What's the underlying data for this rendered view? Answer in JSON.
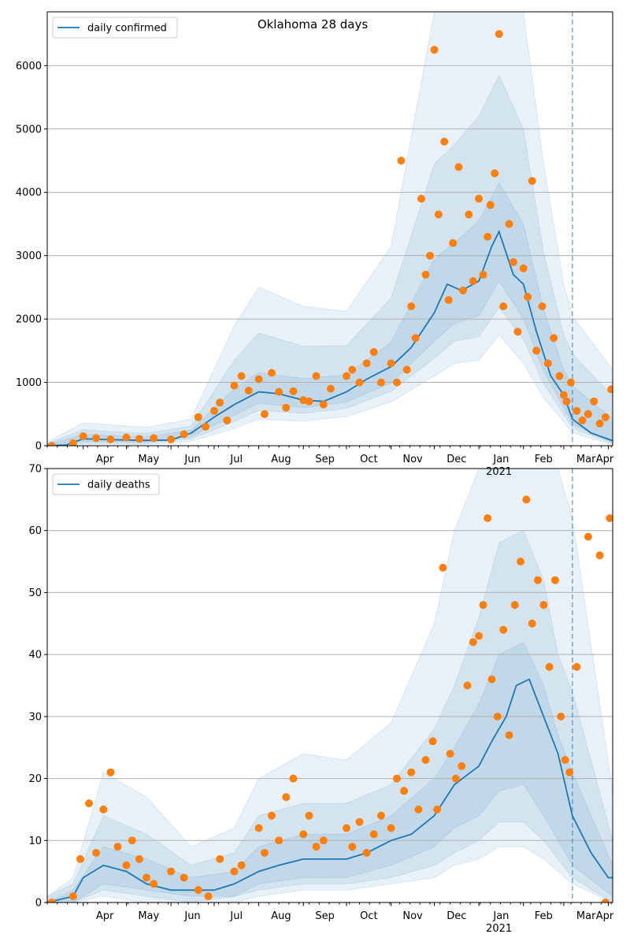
{
  "chart_data": [
    {
      "type": "line",
      "title": "Oklahoma 28 days",
      "xlabel": "",
      "ylabel": "",
      "ylim": [
        0,
        6850
      ],
      "yticks": [
        0,
        1000,
        2000,
        3000,
        4000,
        5000,
        6000
      ],
      "grid": "horizontal",
      "legend": {
        "position": "top-left",
        "entries": [
          "daily confirmed"
        ]
      },
      "xtick_labels": [
        "Apr",
        "May",
        "Jun",
        "Jul",
        "Aug",
        "Sep",
        "Oct",
        "Nov",
        "Dec",
        "Jan",
        "Feb",
        "Mar",
        "Apr"
      ],
      "year_label": "2021",
      "forecast_start": "2021-03-07",
      "series": [
        {
          "name": "daily confirmed",
          "kind": "line",
          "color": "#1f77b4",
          "x": [
            "2020-03-07",
            "2020-03-20",
            "2020-04-01",
            "2020-04-15",
            "2020-05-01",
            "2020-05-15",
            "2020-06-01",
            "2020-06-15",
            "2020-07-01",
            "2020-07-15",
            "2020-08-01",
            "2020-08-15",
            "2020-09-01",
            "2020-09-15",
            "2020-10-01",
            "2020-10-15",
            "2020-11-01",
            "2020-11-15",
            "2020-12-01",
            "2020-12-10",
            "2020-12-20",
            "2021-01-01",
            "2021-01-10",
            "2021-01-15",
            "2021-01-25",
            "2021-02-01",
            "2021-02-10",
            "2021-02-20",
            "2021-03-01",
            "2021-03-07",
            "2021-03-20",
            "2021-04-04"
          ],
          "y": [
            0,
            10,
            110,
            100,
            90,
            85,
            90,
            200,
            450,
            650,
            850,
            820,
            720,
            700,
            850,
            1050,
            1250,
            1550,
            2100,
            2550,
            2450,
            2600,
            3150,
            3380,
            2700,
            2550,
            1800,
            1100,
            800,
            420,
            200,
            80
          ]
        },
        {
          "name": "observed",
          "kind": "scatter",
          "color": "#ff7f0e",
          "x": [
            "2020-03-10",
            "2020-03-25",
            "2020-04-01",
            "2020-04-10",
            "2020-04-20",
            "2020-05-01",
            "2020-05-10",
            "2020-05-20",
            "2020-06-01",
            "2020-06-10",
            "2020-06-20",
            "2020-06-25",
            "2020-07-01",
            "2020-07-05",
            "2020-07-10",
            "2020-07-15",
            "2020-07-20",
            "2020-07-25",
            "2020-08-01",
            "2020-08-05",
            "2020-08-10",
            "2020-08-15",
            "2020-08-20",
            "2020-08-25",
            "2020-09-01",
            "2020-09-05",
            "2020-09-10",
            "2020-09-15",
            "2020-09-20",
            "2020-10-01",
            "2020-10-05",
            "2020-10-10",
            "2020-10-15",
            "2020-10-20",
            "2020-10-25",
            "2020-11-01",
            "2020-11-05",
            "2020-11-08",
            "2020-11-12",
            "2020-11-15",
            "2020-11-18",
            "2020-11-22",
            "2020-11-25",
            "2020-11-28",
            "2020-12-01",
            "2020-12-04",
            "2020-12-08",
            "2020-12-11",
            "2020-12-14",
            "2020-12-18",
            "2020-12-21",
            "2020-12-25",
            "2020-12-28",
            "2021-01-01",
            "2021-01-04",
            "2021-01-07",
            "2021-01-09",
            "2021-01-12",
            "2021-01-15",
            "2021-01-18",
            "2021-01-22",
            "2021-01-25",
            "2021-01-28",
            "2021-02-01",
            "2021-02-04",
            "2021-02-07",
            "2021-02-10",
            "2021-02-14",
            "2021-02-18",
            "2021-02-22",
            "2021-02-26",
            "2021-03-01",
            "2021-03-03",
            "2021-03-06",
            "2021-03-10",
            "2021-03-14",
            "2021-03-18",
            "2021-03-22",
            "2021-03-26",
            "2021-03-30",
            "2021-04-03"
          ],
          "y": [
            0,
            40,
            150,
            120,
            100,
            130,
            110,
            120,
            100,
            180,
            450,
            300,
            550,
            680,
            400,
            950,
            1100,
            870,
            1050,
            500,
            1150,
            850,
            600,
            860,
            720,
            700,
            1100,
            650,
            900,
            1100,
            1200,
            1000,
            1300,
            1480,
            1000,
            1300,
            1000,
            4500,
            1200,
            2200,
            1700,
            3900,
            2700,
            3000,
            6250,
            3650,
            4800,
            2300,
            3200,
            4400,
            2450,
            3650,
            2600,
            3900,
            2700,
            3300,
            3800,
            4300,
            6500,
            2200,
            3500,
            2900,
            1800,
            2800,
            2350,
            4180,
            1500,
            2200,
            1300,
            1700,
            1100,
            800,
            700,
            1000,
            550,
            400,
            500,
            700,
            350,
            450,
            890
          ]
        }
      ],
      "bands": [
        {
          "x": [
            "2020-03-07",
            "2020-04-01",
            "2020-05-15",
            "2020-06-15",
            "2020-07-15",
            "2020-08-01",
            "2020-09-01",
            "2020-10-01",
            "2020-11-01",
            "2020-12-01",
            "2020-12-15",
            "2021-01-01",
            "2021-01-15",
            "2021-02-01",
            "2021-02-15",
            "2021-03-01",
            "2021-03-07",
            "2021-04-04"
          ],
          "low": [
            0,
            20,
            20,
            70,
            270,
            420,
            390,
            460,
            690,
            1100,
            1300,
            1350,
            1750,
            1300,
            750,
            380,
            200,
            20
          ],
          "high": [
            60,
            360,
            290,
            420,
            1900,
            2500,
            2200,
            2120,
            3150,
            6850,
            6850,
            6850,
            6850,
            6850,
            4450,
            2550,
            2050,
            1200
          ]
        },
        {
          "x": [
            "2020-03-07",
            "2020-04-01",
            "2020-05-15",
            "2020-06-15",
            "2020-07-15",
            "2020-08-01",
            "2020-09-01",
            "2020-10-01",
            "2020-11-01",
            "2020-12-01",
            "2020-12-15",
            "2021-01-01",
            "2021-01-15",
            "2021-02-01",
            "2021-02-15",
            "2021-03-01",
            "2021-03-07",
            "2021-04-04"
          ],
          "low": [
            0,
            45,
            40,
            110,
            380,
            560,
            510,
            590,
            860,
            1380,
            1650,
            1720,
            2180,
            1680,
            980,
            500,
            280,
            35
          ],
          "high": [
            35,
            250,
            195,
            310,
            1350,
            1780,
            1570,
            1580,
            2330,
            4450,
            4750,
            5200,
            5850,
            5000,
            3050,
            1750,
            1450,
            780
          ]
        },
        {
          "x": [
            "2020-03-07",
            "2020-04-01",
            "2020-05-15",
            "2020-06-15",
            "2020-07-15",
            "2020-08-01",
            "2020-09-01",
            "2020-10-01",
            "2020-11-01",
            "2020-12-01",
            "2020-12-15",
            "2021-01-01",
            "2021-01-15",
            "2021-02-01",
            "2021-02-15",
            "2021-03-01",
            "2021-03-07",
            "2021-04-04"
          ],
          "low": [
            0,
            70,
            60,
            145,
            480,
            670,
            600,
            690,
            990,
            1650,
            1930,
            2050,
            2600,
            2000,
            1180,
            600,
            340,
            50
          ],
          "high": [
            20,
            175,
            140,
            245,
            900,
            1150,
            1060,
            1120,
            1630,
            2950,
            3200,
            3550,
            4150,
            3500,
            2150,
            1200,
            950,
            420
          ]
        }
      ]
    },
    {
      "type": "line",
      "title": "",
      "xlabel": "",
      "ylabel": "",
      "ylim": [
        0,
        70
      ],
      "yticks": [
        0,
        10,
        20,
        30,
        40,
        50,
        60,
        70
      ],
      "grid": "horizontal",
      "legend": {
        "position": "top-left",
        "entries": [
          "daily deaths"
        ]
      },
      "xtick_labels": [
        "Apr",
        "May",
        "Jun",
        "Jul",
        "Aug",
        "Sep",
        "Oct",
        "Nov",
        "Dec",
        "Jan",
        "Feb",
        "Mar",
        "Apr"
      ],
      "year_label": "2021",
      "forecast_start": "2021-03-07",
      "series": [
        {
          "name": "daily deaths",
          "kind": "line",
          "color": "#1f77b4",
          "x": [
            "2020-03-07",
            "2020-03-25",
            "2020-04-01",
            "2020-04-15",
            "2020-05-01",
            "2020-05-15",
            "2020-06-01",
            "2020-06-15",
            "2020-07-01",
            "2020-07-15",
            "2020-08-01",
            "2020-08-15",
            "2020-09-01",
            "2020-09-15",
            "2020-10-01",
            "2020-10-15",
            "2020-11-01",
            "2020-11-15",
            "2020-12-01",
            "2020-12-15",
            "2021-01-01",
            "2021-01-10",
            "2021-01-20",
            "2021-01-27",
            "2021-02-05",
            "2021-02-15",
            "2021-02-25",
            "2021-03-07",
            "2021-03-20",
            "2021-04-01",
            "2021-04-04"
          ],
          "y": [
            0,
            1,
            4,
            6,
            5,
            3,
            2,
            2,
            2,
            3,
            5,
            6,
            7,
            7,
            7,
            8,
            10,
            11,
            14,
            19,
            22,
            26,
            30,
            35,
            36,
            30,
            24,
            14,
            8,
            4,
            4
          ]
        },
        {
          "name": "observed",
          "kind": "scatter",
          "color": "#ff7f0e",
          "x": [
            "2020-03-10",
            "2020-03-25",
            "2020-03-30",
            "2020-04-05",
            "2020-04-10",
            "2020-04-15",
            "2020-04-20",
            "2020-04-25",
            "2020-05-01",
            "2020-05-05",
            "2020-05-10",
            "2020-05-15",
            "2020-05-20",
            "2020-06-01",
            "2020-06-10",
            "2020-06-20",
            "2020-06-27",
            "2020-07-05",
            "2020-07-15",
            "2020-07-20",
            "2020-08-01",
            "2020-08-05",
            "2020-08-10",
            "2020-08-15",
            "2020-08-20",
            "2020-08-25",
            "2020-09-01",
            "2020-09-05",
            "2020-09-10",
            "2020-09-15",
            "2020-10-01",
            "2020-10-05",
            "2020-10-10",
            "2020-10-15",
            "2020-10-20",
            "2020-10-25",
            "2020-11-01",
            "2020-11-05",
            "2020-11-10",
            "2020-11-15",
            "2020-11-20",
            "2020-11-25",
            "2020-11-30",
            "2020-12-03",
            "2020-12-07",
            "2020-12-12",
            "2020-12-16",
            "2020-12-20",
            "2020-12-24",
            "2020-12-28",
            "2021-01-01",
            "2021-01-04",
            "2021-01-07",
            "2021-01-10",
            "2021-01-14",
            "2021-01-18",
            "2021-01-22",
            "2021-01-26",
            "2021-01-30",
            "2021-02-03",
            "2021-02-07",
            "2021-02-11",
            "2021-02-15",
            "2021-02-19",
            "2021-02-23",
            "2021-02-27",
            "2021-03-02",
            "2021-03-05",
            "2021-03-10",
            "2021-03-18",
            "2021-03-26",
            "2021-03-30",
            "2021-04-02"
          ],
          "y": [
            0,
            1,
            7,
            16,
            8,
            15,
            21,
            9,
            6,
            10,
            7,
            4,
            3,
            5,
            4,
            2,
            1,
            7,
            5,
            6,
            12,
            8,
            14,
            10,
            17,
            20,
            11,
            14,
            9,
            10,
            12,
            9,
            13,
            8,
            11,
            14,
            12,
            20,
            18,
            21,
            15,
            23,
            26,
            15,
            54,
            24,
            20,
            22,
            35,
            42,
            43,
            48,
            62,
            36,
            30,
            44,
            27,
            48,
            55,
            65,
            45,
            52,
            48,
            38,
            52,
            30,
            23,
            21,
            38,
            59,
            56,
            0,
            62
          ]
        }
      ],
      "bands": [
        {
          "x": [
            "2020-03-07",
            "2020-03-25",
            "2020-04-15",
            "2020-05-15",
            "2020-06-15",
            "2020-07-15",
            "2020-08-01",
            "2020-09-01",
            "2020-10-01",
            "2020-11-01",
            "2020-12-01",
            "2020-12-15",
            "2021-01-01",
            "2021-01-15",
            "2021-02-01",
            "2021-02-15",
            "2021-02-25",
            "2021-03-07",
            "2021-04-04"
          ],
          "low": [
            0,
            0,
            1,
            0,
            0,
            0,
            1,
            2,
            2,
            3,
            4,
            6,
            7,
            9,
            9,
            7,
            5,
            3,
            0
          ],
          "high": [
            1,
            4,
            21,
            17,
            9,
            12,
            20,
            24,
            23,
            29,
            45,
            60,
            70,
            70,
            70,
            70,
            70,
            62,
            18
          ]
        },
        {
          "x": [
            "2020-03-07",
            "2020-03-25",
            "2020-04-15",
            "2020-05-15",
            "2020-06-15",
            "2020-07-15",
            "2020-08-01",
            "2020-09-01",
            "2020-10-01",
            "2020-11-01",
            "2020-12-01",
            "2020-12-15",
            "2021-01-01",
            "2021-01-15",
            "2021-02-01",
            "2021-02-15",
            "2021-02-25",
            "2021-03-07",
            "2021-04-04"
          ],
          "low": [
            0,
            0,
            2,
            1,
            0,
            1,
            2,
            3,
            3,
            4,
            6,
            8,
            10,
            13,
            13,
            10,
            7,
            4,
            0
          ],
          "high": [
            1,
            3,
            14,
            11,
            6,
            8,
            14,
            16,
            16,
            19,
            28,
            35,
            46,
            58,
            60,
            52,
            40,
            34,
            10
          ]
        },
        {
          "x": [
            "2020-03-07",
            "2020-03-25",
            "2020-04-15",
            "2020-05-15",
            "2020-06-15",
            "2020-07-15",
            "2020-08-01",
            "2020-09-01",
            "2020-10-01",
            "2020-11-01",
            "2020-12-01",
            "2020-12-15",
            "2021-01-01",
            "2021-01-15",
            "2021-02-01",
            "2021-02-15",
            "2021-02-25",
            "2021-03-07",
            "2021-04-04"
          ],
          "low": [
            0,
            0,
            3,
            2,
            1,
            1,
            3,
            4,
            4,
            6,
            9,
            12,
            14,
            18,
            19,
            14,
            10,
            6,
            1
          ],
          "high": [
            0,
            2,
            9,
            7,
            4,
            5,
            9,
            11,
            11,
            14,
            20,
            25,
            32,
            40,
            42,
            35,
            27,
            21,
            6
          ]
        }
      ]
    }
  ]
}
